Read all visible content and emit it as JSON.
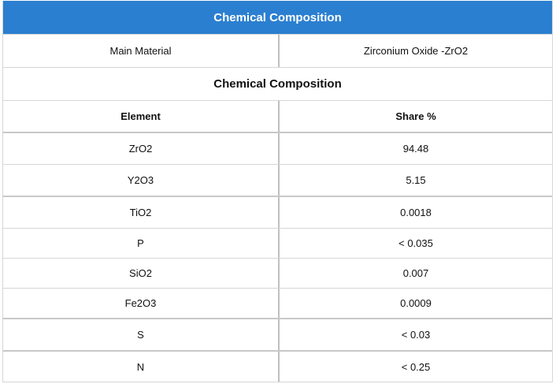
{
  "header": {
    "title": "Chemical Composition"
  },
  "main_material": {
    "label": "Main Material",
    "value": "Zirconium Oxide -ZrO2"
  },
  "section_title": "Chemical Composition",
  "columns": {
    "element": "Element",
    "share": "Share %"
  },
  "rows": [
    {
      "element": "ZrO2",
      "share": "94.48"
    },
    {
      "element": "Y2O3",
      "share": "5.15"
    },
    {
      "element": "TiO2",
      "share": "0.0018"
    },
    {
      "element": "P",
      "share": "< 0.035"
    },
    {
      "element": "SiO2",
      "share": "0.007"
    },
    {
      "element": "Fe2O3",
      "share": "0.0009"
    },
    {
      "element": "S",
      "share": "< 0.03"
    },
    {
      "element": "N",
      "share": "< 0.25"
    }
  ]
}
